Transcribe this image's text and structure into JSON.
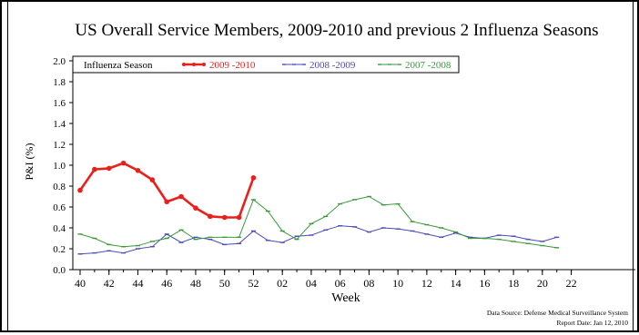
{
  "chart_data": {
    "type": "line",
    "title": "US Overall Service Members, 2009-2010 and previous 2 Influenza Seasons",
    "xlabel": "Week",
    "ylabel": "P&I (%)",
    "ylim": [
      0,
      2.0
    ],
    "yticks": [
      "0.0",
      "0.2",
      "0.4",
      "0.6",
      "0.8",
      "1.0",
      "1.2",
      "1.4",
      "1.6",
      "1.8",
      "2.0"
    ],
    "xticks": [
      "40",
      "42",
      "44",
      "46",
      "48",
      "50",
      "52",
      "02",
      "04",
      "06",
      "08",
      "10",
      "12",
      "14",
      "16",
      "18",
      "20",
      "22"
    ],
    "legend_title": "Influenza Season",
    "legend_position": "top-left",
    "grid": false,
    "series": [
      {
        "name": "2009 -2010",
        "color": "#e8201c",
        "weeks": [
          "40",
          "41",
          "42",
          "43",
          "44",
          "45",
          "46",
          "47",
          "48",
          "49",
          "50",
          "51",
          "52"
        ],
        "values": [
          0.76,
          0.96,
          0.97,
          1.02,
          0.95,
          0.86,
          0.65,
          0.7,
          0.59,
          0.51,
          0.5,
          0.5,
          0.88
        ]
      },
      {
        "name": "2008 -2009",
        "color": "#4a4ab8",
        "weeks": [
          "40",
          "41",
          "42",
          "43",
          "44",
          "45",
          "46",
          "47",
          "48",
          "49",
          "50",
          "51",
          "52",
          "01",
          "02",
          "03",
          "04",
          "05",
          "06",
          "07",
          "08",
          "09",
          "10",
          "11",
          "12",
          "13",
          "14",
          "15",
          "16",
          "17",
          "18",
          "19",
          "20",
          "21"
        ],
        "values": [
          0.15,
          0.16,
          0.18,
          0.16,
          0.2,
          0.22,
          0.34,
          0.26,
          0.31,
          0.29,
          0.24,
          0.25,
          0.37,
          0.28,
          0.26,
          0.32,
          0.33,
          0.38,
          0.42,
          0.41,
          0.36,
          0.4,
          0.39,
          0.37,
          0.34,
          0.31,
          0.35,
          0.31,
          0.3,
          0.33,
          0.32,
          0.29,
          0.27,
          0.31
        ]
      },
      {
        "name": "2007 -2008",
        "color": "#3a9a3a",
        "weeks": [
          "40",
          "41",
          "42",
          "43",
          "44",
          "45",
          "46",
          "47",
          "48",
          "49",
          "50",
          "51",
          "52",
          "01",
          "02",
          "03",
          "04",
          "05",
          "06",
          "07",
          "08",
          "09",
          "10",
          "11",
          "12",
          "13",
          "14",
          "15",
          "16",
          "17",
          "18",
          "19",
          "20",
          "21"
        ],
        "values": [
          0.34,
          0.3,
          0.24,
          0.22,
          0.23,
          0.27,
          0.3,
          0.38,
          0.29,
          0.31,
          0.31,
          0.31,
          0.67,
          0.56,
          0.37,
          0.29,
          0.44,
          0.51,
          0.63,
          0.67,
          0.7,
          0.62,
          0.63,
          0.46,
          0.43,
          0.4,
          0.36,
          0.3,
          0.3,
          0.29,
          0.27,
          0.25,
          0.23,
          0.21
        ]
      }
    ]
  },
  "footer": {
    "source": "Data Source: Defense Medical Surveillance System",
    "report_date": "Report Date: Jan 12, 2010"
  }
}
